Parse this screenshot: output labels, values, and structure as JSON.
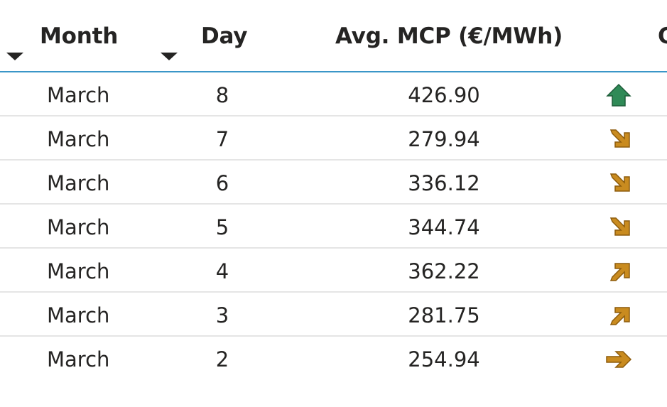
{
  "header": {
    "month": "Month",
    "day": "Day",
    "mcp": "Avg. MCP (€/MWh)",
    "change": "C"
  },
  "colors": {
    "accent": "#3a96c8",
    "up": "#2f8a57",
    "down": "#c98b1f"
  },
  "rows": [
    {
      "month": "March",
      "day": "8",
      "mcp": "426.90",
      "trend": "arrow-up-icon"
    },
    {
      "month": "March",
      "day": "7",
      "mcp": "279.94",
      "trend": "arrow-down-right-icon"
    },
    {
      "month": "March",
      "day": "6",
      "mcp": "336.12",
      "trend": "arrow-down-right-icon"
    },
    {
      "month": "March",
      "day": "5",
      "mcp": "344.74",
      "trend": "arrow-down-right-icon"
    },
    {
      "month": "March",
      "day": "4",
      "mcp": "362.22",
      "trend": "arrow-up-right-icon"
    },
    {
      "month": "March",
      "day": "3",
      "mcp": "281.75",
      "trend": "arrow-up-right-icon"
    },
    {
      "month": "March",
      "day": "2",
      "mcp": "254.94",
      "trend": "arrow-right-icon"
    }
  ]
}
